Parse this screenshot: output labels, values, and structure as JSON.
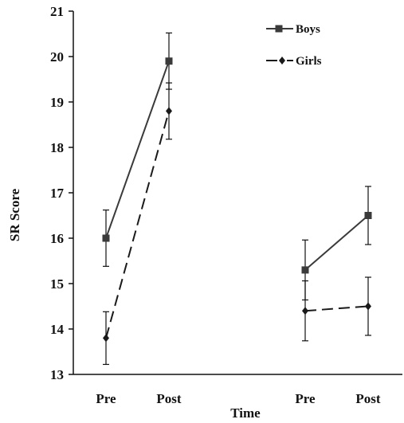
{
  "chart_data": {
    "type": "line",
    "title": "",
    "xlabel": "Time",
    "ylabel": "SR Score",
    "ylim": [
      13,
      21
    ],
    "yticks": [
      13,
      14,
      15,
      16,
      17,
      18,
      19,
      20,
      21
    ],
    "categories": [
      "Pre",
      "Post",
      "Pre",
      "Post"
    ],
    "groups": [
      {
        "x_index": [
          0,
          1
        ]
      },
      {
        "x_index": [
          2,
          3
        ]
      }
    ],
    "grid": false,
    "legend_position": "top-right",
    "series": [
      {
        "name": "Boys",
        "line_style": "solid",
        "marker": "square",
        "color": "#3a3a3a",
        "values": [
          16.0,
          19.9,
          15.3,
          16.5
        ],
        "error": [
          0.62,
          0.62,
          0.66,
          0.64
        ]
      },
      {
        "name": "Girls",
        "line_style": "dashed",
        "marker": "diamond",
        "color": "#1a1a1a",
        "values": [
          13.8,
          18.8,
          14.4,
          14.5
        ],
        "error": [
          0.58,
          0.62,
          0.66,
          0.64
        ]
      }
    ]
  }
}
